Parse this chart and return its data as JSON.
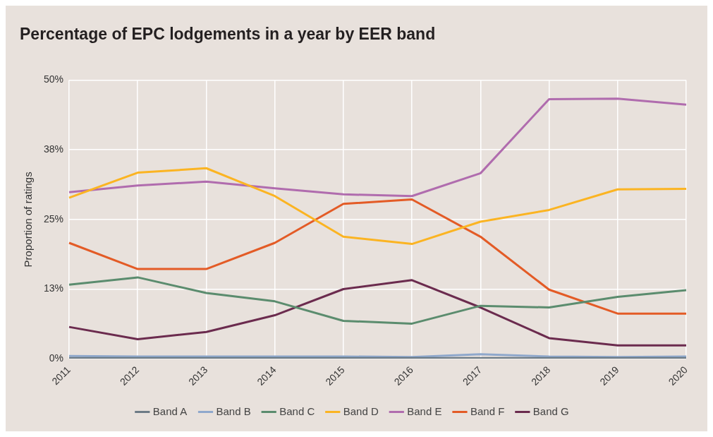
{
  "chart_data": {
    "type": "line",
    "title": "Percentage of EPC lodgements in a year by EER band",
    "ylabel": "Proportion of ratings",
    "categories": [
      "2011",
      "2012",
      "2013",
      "2014",
      "2015",
      "2016",
      "2017",
      "2018",
      "2019",
      "2020"
    ],
    "ylim": [
      0,
      50
    ],
    "yticks": [
      {
        "value": 0,
        "label": "0%"
      },
      {
        "value": 12.5,
        "label": "13%"
      },
      {
        "value": 25,
        "label": "25%"
      },
      {
        "value": 37.5,
        "label": "38%"
      },
      {
        "value": 50,
        "label": "50%"
      }
    ],
    "grid": true,
    "legend": "bottom",
    "marker": "none",
    "line_style": "solid",
    "series": [
      {
        "name": "Band A",
        "color": "#6d7b86",
        "values": [
          0.1,
          0.1,
          0.1,
          0.1,
          0.1,
          0.1,
          0.1,
          0.1,
          0.1,
          0.1
        ]
      },
      {
        "name": "Band B",
        "color": "#8fa8cc",
        "values": [
          0.5,
          0.4,
          0.4,
          0.4,
          0.4,
          0.3,
          0.8,
          0.4,
          0.3,
          0.4
        ]
      },
      {
        "name": "Band C",
        "color": "#5b8c6e",
        "values": [
          13.3,
          14.6,
          11.8,
          10.3,
          6.8,
          6.3,
          9.5,
          9.2,
          11.1,
          12.3
        ]
      },
      {
        "name": "Band D",
        "color": "#fbb422",
        "values": [
          28.9,
          33.4,
          34.2,
          29.2,
          21.9,
          20.6,
          24.6,
          26.7,
          30.4,
          30.5
        ]
      },
      {
        "name": "Band E",
        "color": "#b06cae",
        "values": [
          29.9,
          31.1,
          31.8,
          30.6,
          29.5,
          29.2,
          33.3,
          46.6,
          46.7,
          45.6
        ]
      },
      {
        "name": "Band F",
        "color": "#e35b26",
        "values": [
          20.8,
          16.1,
          16.1,
          20.8,
          27.8,
          28.6,
          21.9,
          12.4,
          8.1,
          8.1
        ]
      },
      {
        "name": "Band G",
        "color": "#6b2b4e",
        "values": [
          5.7,
          3.5,
          4.8,
          7.8,
          12.5,
          14.1,
          9.2,
          3.7,
          2.4,
          2.4
        ]
      }
    ]
  }
}
